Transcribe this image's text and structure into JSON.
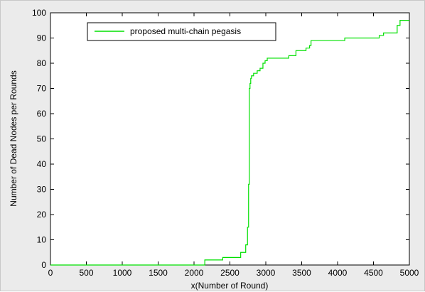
{
  "chart_data": {
    "type": "line",
    "xlabel": "x(Number of Round)",
    "ylabel": "Number of Dead Nodes per Rounds",
    "xlim": [
      0,
      5000
    ],
    "ylim": [
      0,
      100
    ],
    "xticks": [
      0,
      500,
      1000,
      1500,
      2000,
      2500,
      3000,
      3500,
      4000,
      4500,
      5000
    ],
    "yticks": [
      0,
      10,
      20,
      30,
      40,
      50,
      60,
      70,
      80,
      90,
      100
    ],
    "grid": false,
    "legend_position": "top-left",
    "series": [
      {
        "name": "proposed multi-chain pegasis",
        "color": "#00e000",
        "step": true,
        "x": [
          0,
          2150,
          2150,
          2400,
          2400,
          2650,
          2650,
          2720,
          2720,
          2745,
          2745,
          2760,
          2760,
          2770,
          2770,
          2780,
          2780,
          2790,
          2790,
          2800,
          2800,
          2810,
          2810,
          2830,
          2830,
          2850,
          2850,
          2880,
          2880,
          2920,
          2920,
          2960,
          2960,
          2990,
          2990,
          3020,
          3020,
          3060,
          3060,
          3320,
          3320,
          3420,
          3420,
          3560,
          3560,
          3610,
          3610,
          3630,
          3630,
          3660,
          3660,
          4100,
          4100,
          4580,
          4580,
          4640,
          4640,
          4830,
          4830,
          4870,
          4870,
          5000
        ],
        "y": [
          0,
          0,
          2,
          2,
          3,
          3,
          5,
          5,
          8,
          8,
          15,
          15,
          32,
          32,
          70,
          70,
          72,
          72,
          74,
          74,
          75,
          75,
          75,
          75,
          76,
          76,
          76,
          76,
          77,
          77,
          78,
          78,
          80,
          80,
          81,
          81,
          82,
          82,
          82,
          82,
          83,
          83,
          85,
          85,
          86,
          86,
          87,
          87,
          89,
          89,
          89,
          89,
          90,
          90,
          91,
          91,
          92,
          92,
          95,
          95,
          97,
          97
        ]
      }
    ]
  }
}
